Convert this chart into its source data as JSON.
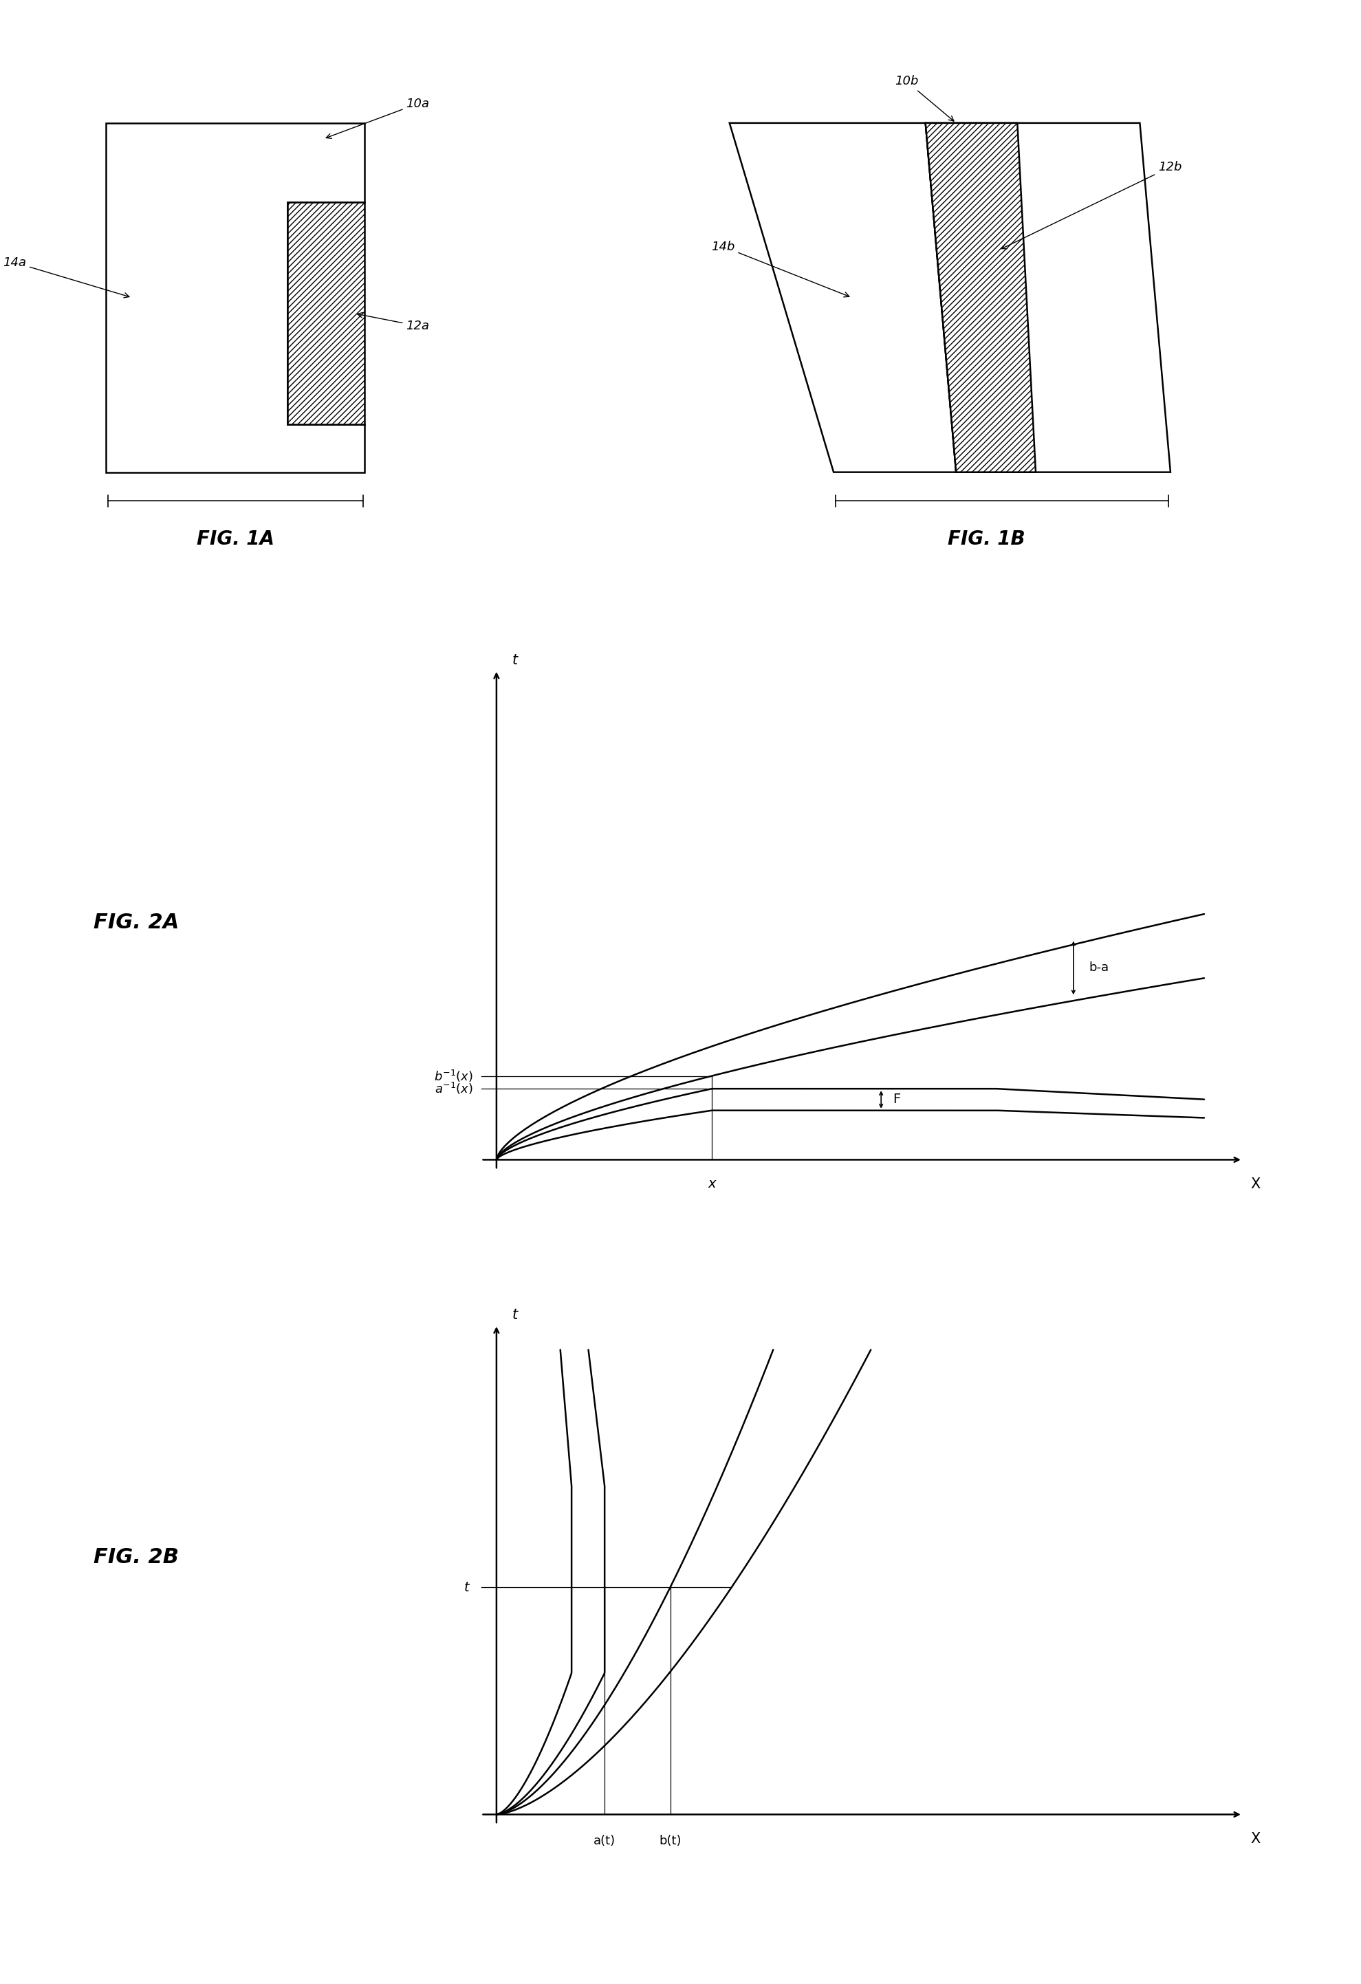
{
  "fig_width": 19.79,
  "fig_height": 28.85,
  "bg_color": "#ffffff",
  "line_color": "#000000",
  "fig1a_label": "FIG. 1A",
  "fig1b_label": "FIG. 1B",
  "fig2a_label": "FIG. 2A",
  "fig2b_label": "FIG. 2B",
  "lw": 1.8,
  "lw_thin": 0.9
}
